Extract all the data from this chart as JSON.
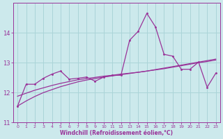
{
  "xlabel": "Windchill (Refroidissement éolien,°C)",
  "background_color": "#cce9ec",
  "grid_color": "#aad4d8",
  "line_color": "#993399",
  "x_data": [
    0,
    1,
    2,
    3,
    4,
    5,
    6,
    7,
    8,
    9,
    10,
    11,
    12,
    13,
    14,
    15,
    16,
    17,
    18,
    19,
    20,
    21,
    22,
    23
  ],
  "y_main": [
    11.55,
    12.28,
    12.28,
    12.48,
    12.62,
    12.72,
    12.45,
    12.48,
    12.52,
    12.38,
    12.52,
    12.58,
    12.58,
    13.75,
    14.05,
    14.65,
    14.2,
    13.28,
    13.22,
    12.78,
    12.78,
    13.02,
    12.18,
    12.65
  ],
  "y_linear1": [
    11.55,
    11.72,
    11.87,
    12.0,
    12.1,
    12.2,
    12.28,
    12.36,
    12.42,
    12.47,
    12.52,
    12.56,
    12.6,
    12.64,
    12.68,
    12.72,
    12.77,
    12.82,
    12.87,
    12.92,
    12.97,
    13.02,
    13.07,
    13.12
  ],
  "y_linear2": [
    11.88,
    11.98,
    12.08,
    12.16,
    12.24,
    12.31,
    12.37,
    12.43,
    12.47,
    12.51,
    12.55,
    12.58,
    12.62,
    12.65,
    12.68,
    12.72,
    12.76,
    12.8,
    12.85,
    12.9,
    12.95,
    13.0,
    13.04,
    13.09
  ],
  "ylim": [
    11.0,
    15.0
  ],
  "yticks": [
    11,
    12,
    13,
    14
  ],
  "xticks": [
    0,
    1,
    2,
    3,
    4,
    5,
    6,
    7,
    8,
    9,
    10,
    11,
    12,
    13,
    14,
    15,
    16,
    17,
    18,
    19,
    20,
    21,
    22,
    23
  ],
  "figsize": [
    3.2,
    2.0
  ],
  "dpi": 100
}
